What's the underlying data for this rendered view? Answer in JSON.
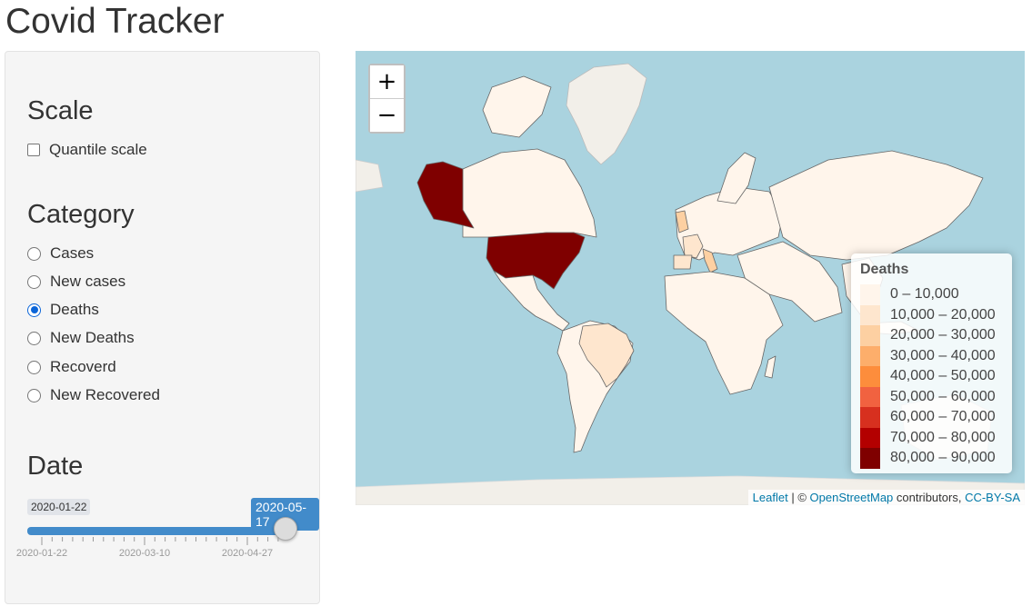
{
  "app": {
    "title": "Covid Tracker"
  },
  "sidebar": {
    "scale": {
      "heading": "Scale",
      "quantile_label": "Quantile scale",
      "quantile_checked": false
    },
    "category": {
      "heading": "Category",
      "options": [
        {
          "label": "Cases",
          "selected": false
        },
        {
          "label": "New cases",
          "selected": false
        },
        {
          "label": "Deaths",
          "selected": true
        },
        {
          "label": "New Deaths",
          "selected": false
        },
        {
          "label": "Recoverd",
          "selected": false
        },
        {
          "label": "New Recovered",
          "selected": false
        }
      ]
    },
    "date": {
      "heading": "Date",
      "min": "2020-01-22",
      "max": "2020-05-17",
      "value": "2020-05-17",
      "tick_labels": [
        "2020-01-22",
        "2020-03-10",
        "2020-04-27"
      ]
    }
  },
  "map": {
    "zoom_in": "+",
    "zoom_out": "−",
    "legend": {
      "title": "Deaths",
      "entries": [
        {
          "label": "0 – 10,000",
          "color": "#fff5eb"
        },
        {
          "label": "10,000 – 20,000",
          "color": "#fee6ce"
        },
        {
          "label": "20,000 – 30,000",
          "color": "#fdd0a2"
        },
        {
          "label": "30,000 – 40,000",
          "color": "#fdae6b"
        },
        {
          "label": "40,000 – 50,000",
          "color": "#fd8d3c"
        },
        {
          "label": "50,000 – 60,000",
          "color": "#f16240"
        },
        {
          "label": "60,000 – 70,000",
          "color": "#d7301f"
        },
        {
          "label": "70,000 – 80,000",
          "color": "#b30000"
        },
        {
          "label": "80,000 – 90,000",
          "color": "#7f0000"
        }
      ]
    },
    "attribution": {
      "leaflet": "Leaflet",
      "separator": " | © ",
      "osm": "OpenStreetMap",
      "contributors": " contributors, ",
      "license": "CC-BY-SA"
    },
    "colors": {
      "water": "#aad3df",
      "default_land": "#fff5eb",
      "usa": "#7f0000",
      "uk_italy": "#fdd0a2",
      "spain_france_brazil": "#fee6ce"
    }
  }
}
